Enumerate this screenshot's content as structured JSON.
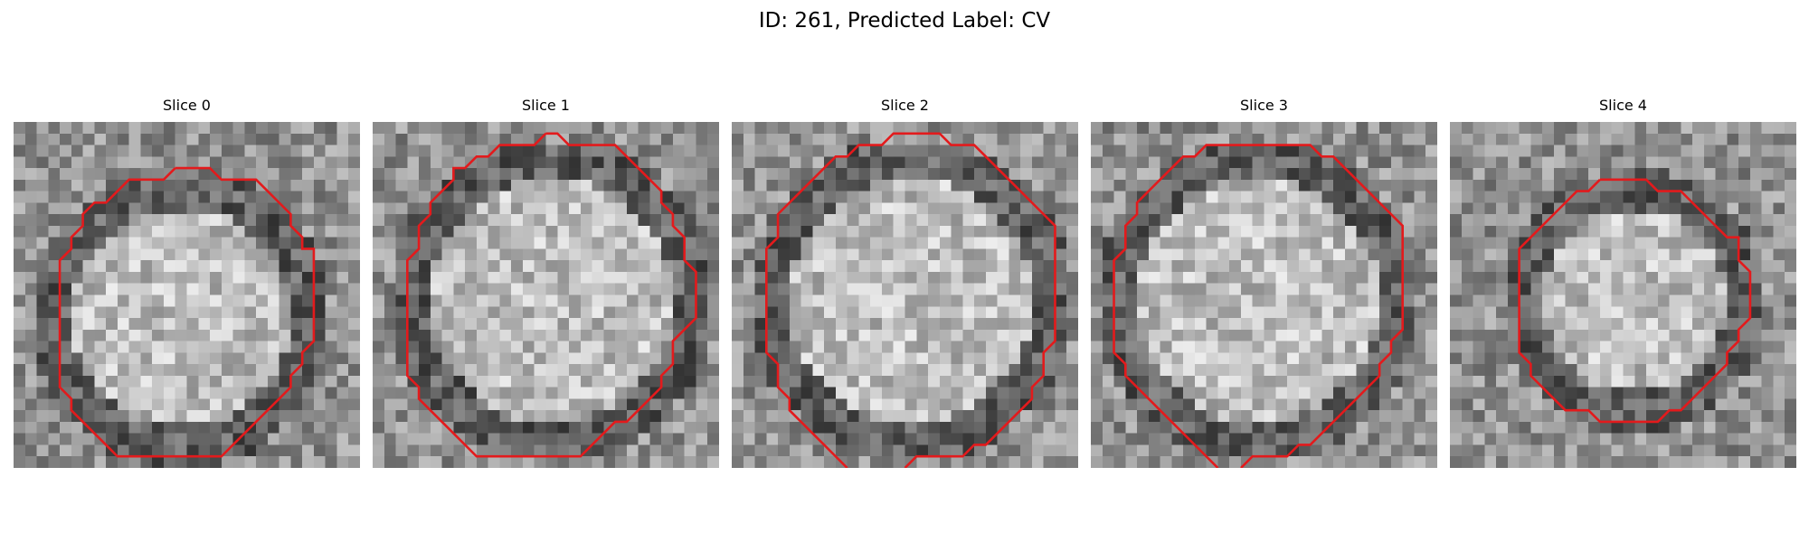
{
  "figure": {
    "title": "ID: 261, Predicted Label: CV"
  },
  "colors": {
    "contour": "#e31a1c",
    "background": "#ffffff",
    "colormap": "grayscale"
  },
  "panels": [
    {
      "title": "Slice 0"
    },
    {
      "title": "Slice 1"
    },
    {
      "title": "Slice 2"
    },
    {
      "title": "Slice 3"
    },
    {
      "title": "Slice 4"
    }
  ]
}
